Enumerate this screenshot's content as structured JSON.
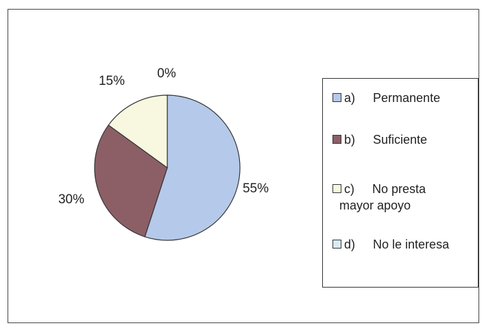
{
  "chart_data": {
    "type": "pie",
    "title": "",
    "slices": [
      {
        "key": "a)",
        "label": "Permanente",
        "value": 55,
        "display": "55%",
        "color": "#b5c9ea"
      },
      {
        "key": "b)",
        "label": "Suficiente",
        "value": 30,
        "display": "30%",
        "color": "#8c5f66"
      },
      {
        "key": "c)",
        "label": "No presta",
        "label_cont": "mayor apoyo",
        "value": 15,
        "display": "15%",
        "color": "#f8f8e0"
      },
      {
        "key": "d)",
        "label": "No le interesa",
        "value": 0,
        "display": "0%",
        "color": "#d6ecf2"
      }
    ],
    "legend_position": "right"
  }
}
